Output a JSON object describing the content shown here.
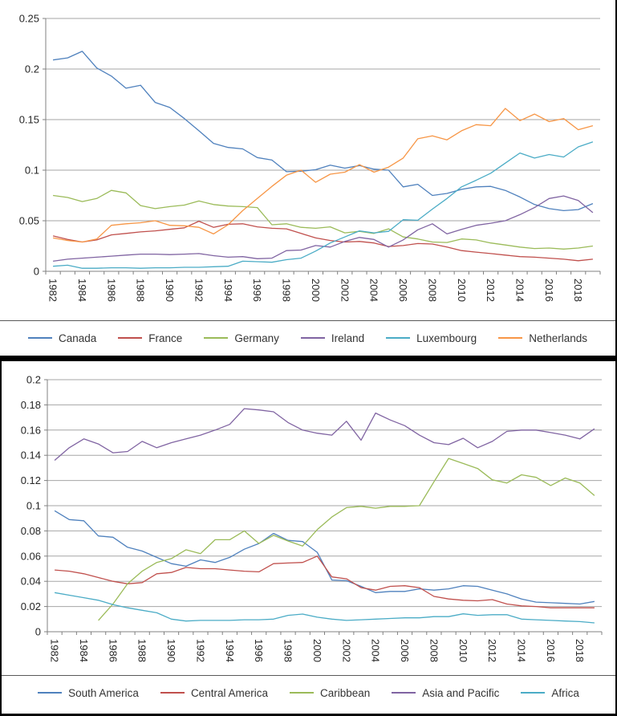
{
  "theme": {
    "grid_color": "#a6a6a6",
    "axis_color": "#808080",
    "tick_text_color": "#262626",
    "legend_text_color": "#333333",
    "panel_border_color": "#000000",
    "separator_color": "#595959",
    "background": "#ffffff"
  },
  "chart_data": [
    {
      "type": "line",
      "title": "",
      "xlabel": "",
      "ylabel": "",
      "grid": true,
      "legend_position": "bottom",
      "ylim": [
        0,
        0.25
      ],
      "y_ticks": [
        0,
        0.05,
        0.1,
        0.15,
        0.2,
        0.25
      ],
      "y_tick_labels": [
        "0",
        "0.05",
        "0.1",
        "0.15",
        "0.2",
        "0.25"
      ],
      "x": [
        1982,
        1983,
        1984,
        1985,
        1986,
        1987,
        1988,
        1989,
        1990,
        1991,
        1992,
        1993,
        1994,
        1995,
        1996,
        1997,
        1998,
        1999,
        2000,
        2001,
        2002,
        2003,
        2004,
        2005,
        2006,
        2007,
        2008,
        2009,
        2010,
        2011,
        2012,
        2013,
        2014,
        2015,
        2016,
        2017,
        2018,
        2019
      ],
      "x_tick_labels": [
        "1982",
        "1984",
        "1986",
        "1988",
        "1990",
        "1992",
        "1994",
        "1996",
        "1998",
        "2000",
        "2002",
        "2004",
        "2006",
        "2008",
        "2010",
        "2012",
        "2014",
        "2016",
        "2018"
      ],
      "series": [
        {
          "name": "Canada",
          "color": "#4F81BD",
          "values": [
            0.209,
            0.211,
            0.2175,
            0.201,
            0.193,
            0.181,
            0.184,
            0.167,
            0.162,
            0.151,
            0.139,
            0.1265,
            0.1225,
            0.121,
            0.1125,
            0.11,
            0.0985,
            0.099,
            0.1005,
            0.105,
            0.102,
            0.1045,
            0.101,
            0.1,
            0.0835,
            0.086,
            0.075,
            0.077,
            0.081,
            0.0835,
            0.084,
            0.08,
            0.0735,
            0.066,
            0.062,
            0.06,
            0.061,
            0.067
          ]
        },
        {
          "name": "France",
          "color": "#C0504D",
          "values": [
            0.035,
            0.0315,
            0.029,
            0.031,
            0.036,
            0.0375,
            0.039,
            0.04,
            0.0415,
            0.043,
            0.0495,
            0.0435,
            0.0465,
            0.047,
            0.044,
            0.0425,
            0.042,
            0.0375,
            0.033,
            0.0305,
            0.029,
            0.0295,
            0.028,
            0.0245,
            0.0255,
            0.0275,
            0.027,
            0.024,
            0.0205,
            0.019,
            0.0175,
            0.016,
            0.0145,
            0.014,
            0.013,
            0.012,
            0.0105,
            0.012
          ]
        },
        {
          "name": "Germany",
          "color": "#9BBB59",
          "values": [
            0.075,
            0.073,
            0.069,
            0.072,
            0.08,
            0.0775,
            0.065,
            0.062,
            0.064,
            0.0655,
            0.0695,
            0.066,
            0.0645,
            0.064,
            0.063,
            0.046,
            0.047,
            0.0435,
            0.0425,
            0.044,
            0.038,
            0.0395,
            0.0375,
            0.042,
            0.034,
            0.032,
            0.029,
            0.0285,
            0.032,
            0.031,
            0.028,
            0.026,
            0.024,
            0.0225,
            0.023,
            0.022,
            0.023,
            0.025
          ]
        },
        {
          "name": "Ireland",
          "color": "#8064A2",
          "values": [
            0.01,
            0.012,
            0.013,
            0.014,
            0.015,
            0.016,
            0.017,
            0.017,
            0.0165,
            0.017,
            0.0175,
            0.0155,
            0.014,
            0.0145,
            0.0125,
            0.013,
            0.0205,
            0.021,
            0.0255,
            0.024,
            0.0295,
            0.0335,
            0.0315,
            0.024,
            0.031,
            0.041,
            0.047,
            0.037,
            0.0415,
            0.0455,
            0.0475,
            0.05,
            0.056,
            0.063,
            0.072,
            0.0745,
            0.07,
            0.058
          ]
        },
        {
          "name": "Luxembourg",
          "color": "#4BACC6",
          "values": [
            0.005,
            0.006,
            0.003,
            0.003,
            0.0035,
            0.0035,
            0.003,
            0.0035,
            0.0035,
            0.004,
            0.004,
            0.0045,
            0.005,
            0.01,
            0.0095,
            0.009,
            0.0115,
            0.013,
            0.02,
            0.028,
            0.034,
            0.04,
            0.038,
            0.0395,
            0.051,
            0.0505,
            0.0615,
            0.072,
            0.0835,
            0.09,
            0.097,
            0.107,
            0.117,
            0.112,
            0.1155,
            0.113,
            0.123,
            0.128
          ]
        },
        {
          "name": "Netherlands",
          "color": "#F79646",
          "values": [
            0.033,
            0.0305,
            0.029,
            0.032,
            0.0455,
            0.047,
            0.048,
            0.05,
            0.0455,
            0.045,
            0.0435,
            0.037,
            0.046,
            0.06,
            0.072,
            0.084,
            0.095,
            0.1,
            0.088,
            0.096,
            0.098,
            0.1055,
            0.098,
            0.103,
            0.112,
            0.131,
            0.134,
            0.13,
            0.139,
            0.145,
            0.144,
            0.161,
            0.149,
            0.1555,
            0.148,
            0.151,
            0.14,
            0.144
          ]
        }
      ]
    },
    {
      "type": "line",
      "title": "",
      "xlabel": "",
      "ylabel": "",
      "grid": true,
      "legend_position": "bottom",
      "ylim": [
        0,
        0.2
      ],
      "y_ticks": [
        0,
        0.02,
        0.04,
        0.06,
        0.08,
        0.1,
        0.12,
        0.14,
        0.16,
        0.18,
        0.2
      ],
      "y_tick_labels": [
        "0",
        "0.02",
        "0.04",
        "0.06",
        "0.08",
        "0.1",
        "0.12",
        "0.14",
        "0.16",
        "0.18",
        "0.2"
      ],
      "x": [
        1982,
        1983,
        1984,
        1985,
        1986,
        1987,
        1988,
        1989,
        1990,
        1991,
        1992,
        1993,
        1994,
        1995,
        1996,
        1997,
        1998,
        1999,
        2000,
        2001,
        2002,
        2003,
        2004,
        2005,
        2006,
        2007,
        2008,
        2009,
        2010,
        2011,
        2012,
        2013,
        2014,
        2015,
        2016,
        2017,
        2018,
        2019
      ],
      "x_tick_labels": [
        "1982",
        "1984",
        "1986",
        "1988",
        "1990",
        "1992",
        "1994",
        "1996",
        "1998",
        "2000",
        "2002",
        "2004",
        "2006",
        "2008",
        "2010",
        "2012",
        "2014",
        "2016",
        "2018"
      ],
      "series": [
        {
          "name": "South America",
          "color": "#4F81BD",
          "values": [
            0.096,
            0.089,
            0.088,
            0.076,
            0.075,
            0.067,
            0.064,
            0.059,
            0.054,
            0.052,
            0.057,
            0.055,
            0.059,
            0.0655,
            0.07,
            0.078,
            0.0725,
            0.0715,
            0.063,
            0.041,
            0.0405,
            0.036,
            0.031,
            0.032,
            0.032,
            0.034,
            0.033,
            0.034,
            0.0365,
            0.036,
            0.033,
            0.03,
            0.026,
            0.0235,
            0.023,
            0.0225,
            0.022,
            0.024
          ]
        },
        {
          "name": "Central America",
          "color": "#C0504D",
          "values": [
            0.049,
            0.048,
            0.046,
            0.043,
            0.04,
            0.038,
            0.039,
            0.046,
            0.047,
            0.051,
            0.05,
            0.05,
            0.049,
            0.048,
            0.0475,
            0.054,
            0.0545,
            0.055,
            0.06,
            0.0435,
            0.042,
            0.035,
            0.033,
            0.036,
            0.0365,
            0.035,
            0.028,
            0.026,
            0.025,
            0.0245,
            0.0255,
            0.022,
            0.0205,
            0.02,
            0.019,
            0.019,
            0.019,
            0.019
          ]
        },
        {
          "name": "Caribbean",
          "color": "#9BBB59",
          "values": [
            null,
            null,
            null,
            0.009,
            0.022,
            0.038,
            0.048,
            0.055,
            0.058,
            0.065,
            0.062,
            0.073,
            0.073,
            0.08,
            0.07,
            0.0765,
            0.072,
            0.068,
            0.081,
            0.091,
            0.0985,
            0.0995,
            0.098,
            0.0995,
            0.0995,
            0.1,
            0.119,
            0.1375,
            0.1335,
            0.1295,
            0.1205,
            0.118,
            0.1245,
            0.1225,
            0.116,
            0.122,
            0.118,
            0.108
          ]
        },
        {
          "name": "Asia and Pacific",
          "color": "#8064A2",
          "values": [
            0.136,
            0.146,
            0.153,
            0.149,
            0.142,
            0.143,
            0.151,
            0.146,
            0.15,
            0.153,
            0.156,
            0.16,
            0.1645,
            0.177,
            0.176,
            0.1745,
            0.166,
            0.16,
            0.1575,
            0.156,
            0.167,
            0.152,
            0.1735,
            0.168,
            0.1635,
            0.156,
            0.15,
            0.1485,
            0.1535,
            0.146,
            0.151,
            0.159,
            0.16,
            0.16,
            0.158,
            0.156,
            0.153,
            0.161
          ]
        },
        {
          "name": "Africa",
          "color": "#4BACC6",
          "values": [
            0.031,
            0.029,
            0.027,
            0.025,
            0.0215,
            0.019,
            0.017,
            0.015,
            0.01,
            0.0085,
            0.009,
            0.009,
            0.009,
            0.0095,
            0.0095,
            0.01,
            0.013,
            0.014,
            0.0115,
            0.01,
            0.009,
            0.0095,
            0.01,
            0.0105,
            0.011,
            0.011,
            0.012,
            0.012,
            0.0142,
            0.013,
            0.0135,
            0.0135,
            0.01,
            0.0095,
            0.009,
            0.0085,
            0.008,
            0.007
          ]
        }
      ]
    }
  ]
}
